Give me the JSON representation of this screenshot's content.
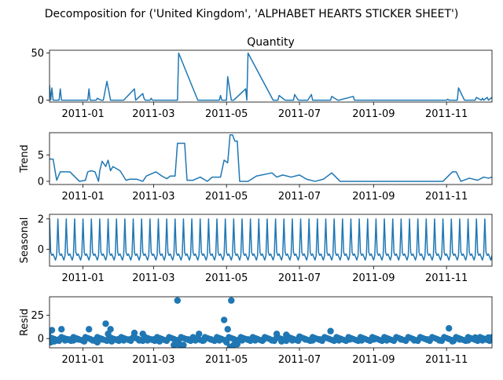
{
  "chart_data": {
    "type": "line",
    "title": "Decomposition for ('United Kingdom', 'ALPHABET HEARTS STICKER SHEET')",
    "line_color": "#1f77b4",
    "x_range": [
      "2011-12-04",
      "2011-12-09"
    ],
    "x_start": "2010-12-04",
    "x_end": "2011-12-09",
    "x_ticks": [
      {
        "date": "2011-01-01",
        "label": "2011-01"
      },
      {
        "date": "2011-03-01",
        "label": "2011-03"
      },
      {
        "date": "2011-05-01",
        "label": "2011-05"
      },
      {
        "date": "2011-07-01",
        "label": "2011-07"
      },
      {
        "date": "2011-09-01",
        "label": "2011-09"
      },
      {
        "date": "2011-11-01",
        "label": "2011-11"
      }
    ],
    "panels": [
      {
        "name": "observed",
        "title": "Quantity",
        "ylabel": "",
        "ylim": [
          -2,
          53
        ],
        "yticks": [
          0,
          50
        ],
        "style": "line",
        "x": [
          "2010-12-04",
          "2010-12-05",
          "2010-12-06",
          "2010-12-07",
          "2010-12-10",
          "2010-12-12",
          "2010-12-13",
          "2010-12-14",
          "2011-01-05",
          "2011-01-06",
          "2011-01-07",
          "2011-01-12",
          "2011-01-13",
          "2011-01-16",
          "2011-01-17",
          "2011-01-18",
          "2011-01-21",
          "2011-01-23",
          "2011-01-24",
          "2011-01-25",
          "2011-02-03",
          "2011-02-04",
          "2011-02-13",
          "2011-02-14",
          "2011-02-20",
          "2011-02-21",
          "2011-02-22",
          "2011-02-26",
          "2011-02-27",
          "2011-02-28",
          "2011-03-08",
          "2011-03-20",
          "2011-03-21",
          "2011-03-22",
          "2011-04-07",
          "2011-04-08",
          "2011-04-09",
          "2011-04-15",
          "2011-04-25",
          "2011-04-26",
          "2011-04-27",
          "2011-04-28",
          "2011-04-29",
          "2011-04-30",
          "2011-05-01",
          "2011-05-02",
          "2011-05-05",
          "2011-05-06",
          "2011-05-07",
          "2011-05-17",
          "2011-05-18",
          "2011-05-19",
          "2011-06-09",
          "2011-06-10",
          "2011-06-12",
          "2011-06-13",
          "2011-06-14",
          "2011-06-19",
          "2011-06-20",
          "2011-06-21",
          "2011-06-26",
          "2011-06-27",
          "2011-06-30",
          "2011-07-01",
          "2011-07-02",
          "2011-07-08",
          "2011-07-11",
          "2011-07-12",
          "2011-07-26",
          "2011-07-27",
          "2011-07-28",
          "2011-08-02",
          "2011-08-03",
          "2011-08-15",
          "2011-08-16",
          "2011-08-25",
          "2011-08-26",
          "2011-09-03",
          "2011-09-04",
          "2011-09-15",
          "2011-09-16",
          "2011-10-28",
          "2011-10-31",
          "2011-11-01",
          "2011-11-02",
          "2011-11-03",
          "2011-11-10",
          "2011-11-11",
          "2011-11-16",
          "2011-11-17",
          "2011-11-18",
          "2011-11-24",
          "2011-11-25",
          "2011-11-26",
          "2011-11-30",
          "2011-12-01",
          "2011-12-02",
          "2011-12-05",
          "2011-12-06",
          "2011-12-09"
        ],
        "y": [
          16,
          0,
          13,
          0,
          0,
          0,
          12,
          0,
          0,
          12,
          0,
          0,
          2,
          0,
          0,
          0,
          20,
          7,
          0,
          0,
          0,
          0,
          12,
          0,
          7,
          2,
          0,
          0,
          2,
          0,
          0,
          0,
          0,
          50,
          0,
          0,
          0,
          0,
          0,
          5,
          0,
          0,
          0,
          0,
          0,
          25,
          0,
          0,
          0,
          12,
          0,
          50,
          0,
          0,
          0,
          0,
          5,
          0,
          0,
          0,
          0,
          6,
          0,
          0,
          0,
          0,
          6,
          0,
          0,
          0,
          4,
          0,
          0,
          4,
          0,
          0,
          0,
          0,
          0,
          0,
          0,
          0,
          0,
          0,
          1,
          0,
          0,
          13,
          0,
          0,
          0,
          0,
          0,
          3,
          0,
          2,
          0,
          3,
          0,
          3
        ]
      },
      {
        "name": "trend",
        "title": "",
        "ylabel": "Trend",
        "ylim": [
          -0.6,
          9.2
        ],
        "yticks": [
          0,
          5
        ],
        "style": "line",
        "x": [
          "2010-12-04",
          "2010-12-07",
          "2010-12-10",
          "2010-12-13",
          "2010-12-15",
          "2010-12-18",
          "2010-12-21",
          "2010-12-29",
          "2011-01-03",
          "2011-01-05",
          "2011-01-08",
          "2011-01-11",
          "2011-01-14",
          "2011-01-15",
          "2011-01-17",
          "2011-01-20",
          "2011-01-22",
          "2011-01-24",
          "2011-01-26",
          "2011-02-01",
          "2011-02-06",
          "2011-02-09",
          "2011-02-15",
          "2011-02-20",
          "2011-02-23",
          "2011-03-03",
          "2011-03-08",
          "2011-03-12",
          "2011-03-15",
          "2011-03-19",
          "2011-03-21",
          "2011-03-27",
          "2011-03-29",
          "2011-04-03",
          "2011-04-09",
          "2011-04-15",
          "2011-04-19",
          "2011-04-23",
          "2011-04-26",
          "2011-04-29",
          "2011-05-02",
          "2011-05-04",
          "2011-05-06",
          "2011-05-08",
          "2011-05-10",
          "2011-05-12",
          "2011-05-16",
          "2011-05-19",
          "2011-05-26",
          "2011-06-08",
          "2011-06-12",
          "2011-06-17",
          "2011-06-24",
          "2011-07-01",
          "2011-07-07",
          "2011-07-14",
          "2011-07-21",
          "2011-07-28",
          "2011-08-04",
          "2011-08-11",
          "2011-09-01",
          "2011-09-15",
          "2011-10-01",
          "2011-10-26",
          "2011-10-29",
          "2011-11-06",
          "2011-11-09",
          "2011-11-13",
          "2011-11-20",
          "2011-11-27",
          "2011-12-02",
          "2011-12-06",
          "2011-12-09"
        ],
        "y": [
          4.2,
          4.2,
          0.2,
          1.8,
          1.8,
          1.8,
          1.8,
          0,
          0.2,
          1.8,
          2.0,
          1.8,
          0,
          2.0,
          3.8,
          2.8,
          4.0,
          2.0,
          2.8,
          2.0,
          0.2,
          0.4,
          0.4,
          0,
          1.0,
          1.8,
          1.0,
          0.5,
          1.0,
          1.0,
          7.2,
          7.2,
          0.2,
          0.2,
          0.8,
          0,
          0.8,
          0.8,
          0.8,
          4.0,
          3.5,
          8.8,
          8.8,
          7.6,
          7.6,
          0,
          0,
          0,
          1.0,
          1.6,
          0.8,
          1.2,
          0.8,
          1.2,
          0.4,
          0,
          0.4,
          1.6,
          0,
          0,
          0,
          0,
          0,
          0,
          0,
          1.8,
          1.8,
          0,
          0.6,
          0.2,
          0.8,
          0.6,
          0.8
        ]
      },
      {
        "name": "seasonal",
        "title": "",
        "ylabel": "Seasonal",
        "ylim": [
          -1.1,
          2.3
        ],
        "yticks": [
          0,
          2
        ],
        "style": "seasonal",
        "period_days": 7,
        "profile": [
          2.0,
          -0.2,
          -0.4,
          -0.3,
          -0.5,
          -0.7,
          -0.4
        ]
      },
      {
        "name": "resid",
        "title": "",
        "ylabel": "Resid",
        "ylim": [
          -10,
          45
        ],
        "yticks": [
          0,
          25
        ],
        "style": "scatter",
        "baseline": 0,
        "points": [
          {
            "x": "2010-12-04",
            "y": 8
          },
          {
            "x": "2010-12-05",
            "y": -4
          },
          {
            "x": "2010-12-06",
            "y": 9
          },
          {
            "x": "2010-12-08",
            "y": -3
          },
          {
            "x": "2010-12-10",
            "y": -2
          },
          {
            "x": "2010-12-12",
            "y": -1
          },
          {
            "x": "2010-12-14",
            "y": 10
          },
          {
            "x": "2010-12-17",
            "y": -2
          },
          {
            "x": "2010-12-20",
            "y": -1
          },
          {
            "x": "2010-12-24",
            "y": -2
          },
          {
            "x": "2010-12-28",
            "y": -1
          },
          {
            "x": "2011-01-02",
            "y": -3
          },
          {
            "x": "2011-01-06",
            "y": 10
          },
          {
            "x": "2011-01-09",
            "y": -2
          },
          {
            "x": "2011-01-13",
            "y": -4
          },
          {
            "x": "2011-01-17",
            "y": -1
          },
          {
            "x": "2011-01-20",
            "y": 16
          },
          {
            "x": "2011-01-22",
            "y": 5
          },
          {
            "x": "2011-01-24",
            "y": 10
          },
          {
            "x": "2011-01-25",
            "y": -3
          },
          {
            "x": "2011-01-30",
            "y": -1
          },
          {
            "x": "2011-02-04",
            "y": -2
          },
          {
            "x": "2011-02-09",
            "y": -1
          },
          {
            "x": "2011-02-13",
            "y": 6
          },
          {
            "x": "2011-02-17",
            "y": -2
          },
          {
            "x": "2011-02-20",
            "y": 5
          },
          {
            "x": "2011-02-24",
            "y": -2
          },
          {
            "x": "2011-03-01",
            "y": -1
          },
          {
            "x": "2011-03-06",
            "y": -3
          },
          {
            "x": "2011-03-12",
            "y": -2
          },
          {
            "x": "2011-03-18",
            "y": -7
          },
          {
            "x": "2011-03-20",
            "y": -6
          },
          {
            "x": "2011-03-21",
            "y": 41
          },
          {
            "x": "2011-03-23",
            "y": -7
          },
          {
            "x": "2011-03-26",
            "y": -7
          },
          {
            "x": "2011-03-30",
            "y": -1
          },
          {
            "x": "2011-04-05",
            "y": -2
          },
          {
            "x": "2011-04-08",
            "y": 5
          },
          {
            "x": "2011-04-12",
            "y": -2
          },
          {
            "x": "2011-04-18",
            "y": -1
          },
          {
            "x": "2011-04-25",
            "y": -2
          },
          {
            "x": "2011-04-29",
            "y": 20
          },
          {
            "x": "2011-05-01",
            "y": -4
          },
          {
            "x": "2011-05-02",
            "y": 10
          },
          {
            "x": "2011-05-04",
            "y": -9
          },
          {
            "x": "2011-05-05",
            "y": 41
          },
          {
            "x": "2011-05-07",
            "y": -7
          },
          {
            "x": "2011-05-10",
            "y": -6
          },
          {
            "x": "2011-05-14",
            "y": -2
          },
          {
            "x": "2011-05-19",
            "y": -1
          },
          {
            "x": "2011-05-25",
            "y": -2
          },
          {
            "x": "2011-06-01",
            "y": -1
          },
          {
            "x": "2011-06-08",
            "y": -2
          },
          {
            "x": "2011-06-12",
            "y": 5
          },
          {
            "x": "2011-06-16",
            "y": -3
          },
          {
            "x": "2011-06-20",
            "y": 4
          },
          {
            "x": "2011-06-25",
            "y": -2
          },
          {
            "x": "2011-07-01",
            "y": 2
          },
          {
            "x": "2011-07-06",
            "y": -1
          },
          {
            "x": "2011-07-12",
            "y": -2
          },
          {
            "x": "2011-07-18",
            "y": -1
          },
          {
            "x": "2011-07-27",
            "y": 8
          },
          {
            "x": "2011-08-03",
            "y": -2
          },
          {
            "x": "2011-08-12",
            "y": -1
          },
          {
            "x": "2011-08-22",
            "y": -2
          },
          {
            "x": "2011-09-01",
            "y": -1
          },
          {
            "x": "2011-09-12",
            "y": -2
          },
          {
            "x": "2011-09-24",
            "y": -1
          },
          {
            "x": "2011-10-05",
            "y": -2
          },
          {
            "x": "2011-10-16",
            "y": -1
          },
          {
            "x": "2011-10-26",
            "y": -2
          },
          {
            "x": "2011-11-03",
            "y": 11
          },
          {
            "x": "2011-11-06",
            "y": -3
          },
          {
            "x": "2011-11-12",
            "y": -1
          },
          {
            "x": "2011-11-19",
            "y": -2
          },
          {
            "x": "2011-11-25",
            "y": 1
          },
          {
            "x": "2011-12-01",
            "y": -2
          },
          {
            "x": "2011-12-06",
            "y": 1
          },
          {
            "x": "2011-12-09",
            "y": -1
          }
        ]
      }
    ]
  }
}
